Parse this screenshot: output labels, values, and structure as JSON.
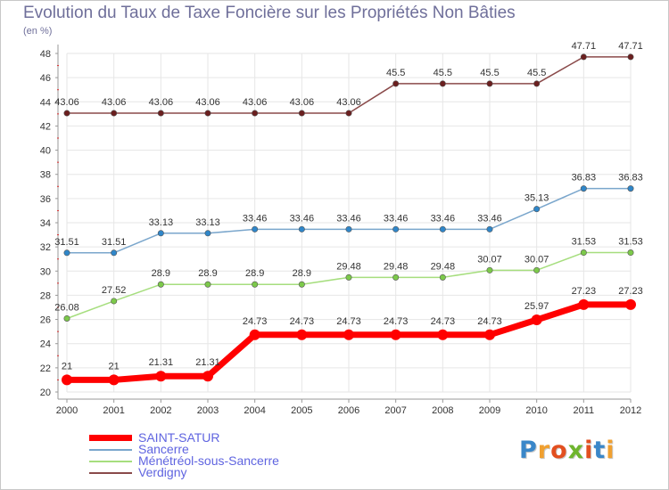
{
  "header": {
    "title": "Evolution du Taux de Taxe Foncière sur les Propriétés Non Bâties",
    "unit": "(en %)"
  },
  "logo": {
    "text": "Proxiti",
    "colors": [
      "#3a87c9",
      "#f0a030",
      "#e24f1f",
      "#6fb52e",
      "#e24f1f",
      "#3a87c9",
      "#f0a030"
    ]
  },
  "chart_data": {
    "type": "line",
    "title": "Evolution du Taux de Taxe Foncière sur les Propriétés Non Bâties",
    "ylabel": "(en %)",
    "xlabel": "",
    "ylim": [
      20,
      48
    ],
    "yticks": [
      20,
      22,
      24,
      26,
      28,
      30,
      32,
      34,
      36,
      38,
      40,
      42,
      44,
      46,
      48
    ],
    "categories": [
      "2000",
      "2001",
      "2002",
      "2003",
      "2004",
      "2005",
      "2006",
      "2007",
      "2008",
      "2009",
      "2010",
      "2011",
      "2012"
    ],
    "grid": true,
    "legend_position": "bottom-left",
    "series": [
      {
        "name": "SAINT-SATUR",
        "color": "#ff0000",
        "lineWidth": 7,
        "markerColor": "#ff0000",
        "values": [
          21,
          21,
          21.31,
          21.31,
          24.73,
          24.73,
          24.73,
          24.73,
          24.73,
          24.73,
          25.97,
          27.23,
          27.23
        ],
        "labels": [
          "21",
          "21",
          "21.31",
          "21.31",
          "24.73",
          "24.73",
          "24.73",
          "24.73",
          "24.73",
          "24.73",
          "25.97",
          "27.23",
          "27.23"
        ]
      },
      {
        "name": "Sancerre",
        "color": "#7aa6cc",
        "lineWidth": 1.5,
        "markerColor": "#2f86c9",
        "values": [
          31.51,
          31.51,
          33.13,
          33.13,
          33.46,
          33.46,
          33.46,
          33.46,
          33.46,
          33.46,
          35.13,
          36.83,
          36.83
        ],
        "labels": [
          "31.51",
          "31.51",
          "33.13",
          "33.13",
          "33.46",
          "33.46",
          "33.46",
          "33.46",
          "33.46",
          "33.46",
          "35.13",
          "36.83",
          "36.83"
        ]
      },
      {
        "name": "Ménétréol-sous-Sancerre",
        "color": "#a6de7e",
        "lineWidth": 1.5,
        "markerColor": "#7cc94a",
        "values": [
          26.08,
          27.52,
          28.9,
          28.9,
          28.9,
          28.9,
          29.48,
          29.48,
          29.48,
          30.07,
          30.07,
          31.53,
          31.53
        ],
        "labels": [
          "26.08",
          "27.52",
          "28.9",
          "28.9",
          "28.9",
          "28.9",
          "29.48",
          "29.48",
          "29.48",
          "30.07",
          "30.07",
          "31.53",
          "31.53"
        ]
      },
      {
        "name": "Verdigny",
        "color": "#8a4a4a",
        "lineWidth": 1.5,
        "markerColor": "#6b1f1f",
        "values": [
          43.06,
          43.06,
          43.06,
          43.06,
          43.06,
          43.06,
          43.06,
          45.5,
          45.5,
          45.5,
          45.5,
          47.71,
          47.71
        ],
        "labels": [
          "43.06",
          "43.06",
          "43.06",
          "43.06",
          "43.06",
          "43.06",
          "43.06",
          "45.5",
          "45.5",
          "45.5",
          "45.5",
          "47.71",
          "47.71"
        ]
      }
    ]
  }
}
